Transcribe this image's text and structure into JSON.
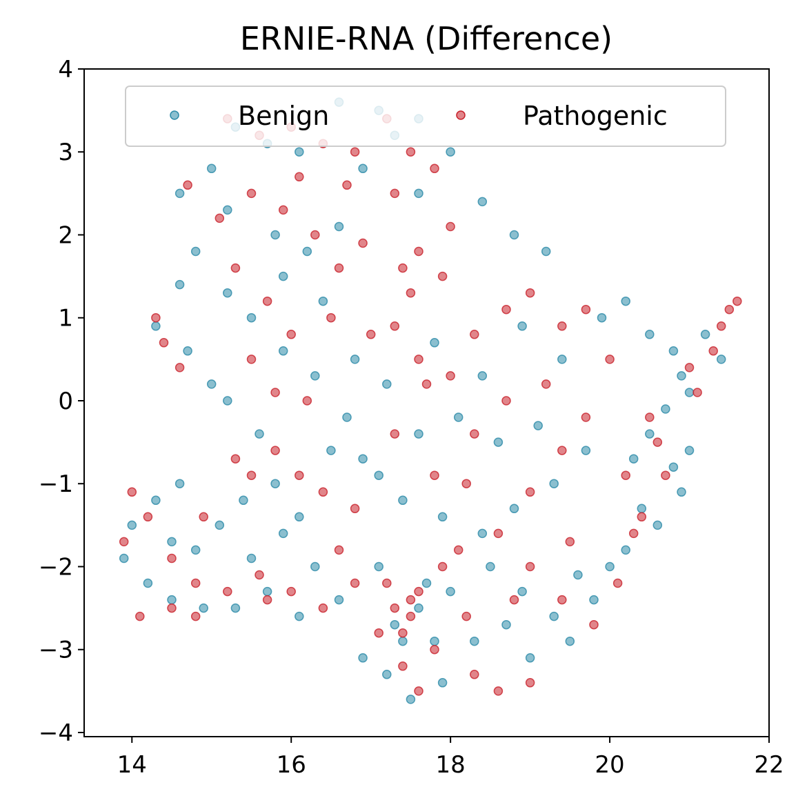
{
  "chart_data": {
    "type": "scatter",
    "title": "ERNIE-RNA (Difference)",
    "xlabel": "",
    "ylabel": "",
    "xlim": [
      13.4,
      22
    ],
    "ylim": [
      -4.05,
      4
    ],
    "x_ticks": [
      14,
      16,
      18,
      20,
      22
    ],
    "y_ticks": [
      4,
      3,
      2,
      1,
      0,
      -1,
      -2,
      -3,
      -4
    ],
    "x_tick_labels": [
      "14",
      "16",
      "18",
      "20",
      "22"
    ],
    "y_tick_labels": [
      "4",
      "3",
      "2",
      "1",
      "0",
      "−1",
      "−2",
      "−3",
      "−4"
    ],
    "grid": false,
    "legend": {
      "placement": "upper center",
      "columns": 2
    },
    "colors": {
      "Benign": "#2b8aa8",
      "Pathogenic": "#c8202a"
    },
    "series": [
      {
        "name": "Benign",
        "color": "#2b8aa8",
        "points": [
          [
            15.3,
            3.3
          ],
          [
            15.7,
            3.1
          ],
          [
            16.1,
            3.0
          ],
          [
            16.6,
            3.6
          ],
          [
            17.1,
            3.5
          ],
          [
            17.6,
            3.4
          ],
          [
            17.3,
            3.2
          ],
          [
            18.0,
            3.0
          ],
          [
            16.9,
            2.8
          ],
          [
            17.6,
            2.5
          ],
          [
            15.0,
            2.8
          ],
          [
            14.6,
            2.5
          ],
          [
            14.8,
            1.8
          ],
          [
            15.2,
            2.3
          ],
          [
            15.8,
            2.0
          ],
          [
            16.2,
            1.8
          ],
          [
            16.6,
            2.1
          ],
          [
            18.4,
            2.4
          ],
          [
            18.8,
            2.0
          ],
          [
            19.2,
            1.8
          ],
          [
            15.9,
            1.5
          ],
          [
            15.2,
            1.3
          ],
          [
            14.6,
            1.4
          ],
          [
            14.3,
            0.9
          ],
          [
            14.7,
            0.6
          ],
          [
            15.0,
            0.2
          ],
          [
            15.5,
            1.0
          ],
          [
            16.4,
            1.2
          ],
          [
            16.8,
            0.5
          ],
          [
            17.2,
            0.2
          ],
          [
            17.8,
            0.7
          ],
          [
            18.4,
            0.3
          ],
          [
            18.9,
            0.9
          ],
          [
            19.4,
            0.5
          ],
          [
            19.9,
            1.0
          ],
          [
            20.2,
            1.2
          ],
          [
            20.5,
            0.8
          ],
          [
            20.8,
            0.6
          ],
          [
            20.9,
            0.3
          ],
          [
            21.0,
            0.1
          ],
          [
            21.2,
            0.8
          ],
          [
            21.4,
            0.5
          ],
          [
            20.7,
            -0.1
          ],
          [
            20.5,
            -0.4
          ],
          [
            20.3,
            -0.7
          ],
          [
            20.8,
            -0.8
          ],
          [
            21.0,
            -0.6
          ],
          [
            20.9,
            -1.1
          ],
          [
            20.6,
            -1.5
          ],
          [
            20.2,
            -1.8
          ],
          [
            19.8,
            -2.4
          ],
          [
            19.5,
            -2.9
          ],
          [
            19.0,
            -3.1
          ],
          [
            18.7,
            -2.7
          ],
          [
            18.3,
            -2.9
          ],
          [
            17.9,
            -3.4
          ],
          [
            17.5,
            -3.6
          ],
          [
            17.2,
            -3.3
          ],
          [
            16.9,
            -3.1
          ],
          [
            17.4,
            -2.9
          ],
          [
            17.7,
            -2.2
          ],
          [
            17.1,
            -2.0
          ],
          [
            16.6,
            -2.4
          ],
          [
            16.1,
            -2.6
          ],
          [
            15.7,
            -2.3
          ],
          [
            15.3,
            -2.5
          ],
          [
            14.9,
            -2.5
          ],
          [
            14.5,
            -2.4
          ],
          [
            14.2,
            -2.2
          ],
          [
            13.9,
            -1.9
          ],
          [
            14.0,
            -1.5
          ],
          [
            14.3,
            -1.2
          ],
          [
            14.6,
            -1.0
          ],
          [
            15.1,
            -1.5
          ],
          [
            15.4,
            -1.2
          ],
          [
            15.8,
            -1.0
          ],
          [
            16.1,
            -1.4
          ],
          [
            16.5,
            -0.6
          ],
          [
            16.9,
            -0.7
          ],
          [
            17.4,
            -1.2
          ],
          [
            17.9,
            -1.4
          ],
          [
            18.4,
            -1.6
          ],
          [
            18.8,
            -1.3
          ],
          [
            19.3,
            -1.0
          ],
          [
            19.7,
            -0.6
          ],
          [
            19.1,
            -0.3
          ],
          [
            18.6,
            -0.5
          ],
          [
            18.1,
            -0.2
          ],
          [
            17.6,
            -0.4
          ],
          [
            17.1,
            -0.9
          ],
          [
            15.6,
            -0.4
          ],
          [
            15.2,
            0.0
          ],
          [
            15.9,
            0.6
          ],
          [
            16.3,
            0.3
          ],
          [
            16.7,
            -0.2
          ],
          [
            14.5,
            -1.7
          ],
          [
            14.8,
            -1.8
          ],
          [
            15.5,
            -1.9
          ],
          [
            15.9,
            -1.6
          ],
          [
            16.3,
            -2.0
          ],
          [
            17.3,
            -2.7
          ],
          [
            17.6,
            -2.5
          ],
          [
            17.8,
            -2.9
          ],
          [
            18.0,
            -2.3
          ],
          [
            18.5,
            -2.0
          ],
          [
            18.9,
            -2.3
          ],
          [
            19.3,
            -2.6
          ],
          [
            19.6,
            -2.1
          ],
          [
            20.0,
            -2.0
          ],
          [
            20.4,
            -1.3
          ]
        ]
      },
      {
        "name": "Pathogenic",
        "color": "#c8202a",
        "points": [
          [
            15.2,
            3.4
          ],
          [
            15.6,
            3.2
          ],
          [
            16.0,
            3.3
          ],
          [
            16.4,
            3.1
          ],
          [
            16.8,
            3.0
          ],
          [
            17.2,
            3.4
          ],
          [
            17.5,
            3.0
          ],
          [
            17.8,
            2.8
          ],
          [
            16.7,
            2.6
          ],
          [
            17.3,
            2.5
          ],
          [
            14.7,
            2.6
          ],
          [
            15.1,
            2.2
          ],
          [
            15.5,
            2.5
          ],
          [
            15.9,
            2.3
          ],
          [
            16.3,
            2.0
          ],
          [
            16.9,
            1.9
          ],
          [
            17.4,
            1.6
          ],
          [
            17.5,
            1.3
          ],
          [
            17.6,
            1.8
          ],
          [
            18.0,
            2.1
          ],
          [
            14.3,
            1.0
          ],
          [
            14.4,
            0.7
          ],
          [
            14.6,
            0.4
          ],
          [
            15.3,
            1.6
          ],
          [
            15.7,
            1.2
          ],
          [
            16.0,
            0.8
          ],
          [
            16.5,
            1.0
          ],
          [
            17.0,
            0.8
          ],
          [
            17.3,
            0.9
          ],
          [
            17.6,
            0.5
          ],
          [
            18.0,
            0.3
          ],
          [
            18.3,
            0.8
          ],
          [
            18.7,
            1.1
          ],
          [
            19.0,
            1.3
          ],
          [
            19.4,
            0.9
          ],
          [
            19.7,
            1.1
          ],
          [
            20.0,
            0.5
          ],
          [
            21.0,
            0.4
          ],
          [
            21.3,
            0.6
          ],
          [
            21.5,
            1.1
          ],
          [
            21.6,
            1.2
          ],
          [
            21.4,
            0.9
          ],
          [
            20.5,
            -0.2
          ],
          [
            20.2,
            -0.9
          ],
          [
            20.4,
            -1.4
          ],
          [
            20.7,
            -0.9
          ],
          [
            20.1,
            -2.2
          ],
          [
            19.8,
            -2.7
          ],
          [
            19.4,
            -2.4
          ],
          [
            19.0,
            -2.0
          ],
          [
            19.0,
            -3.4
          ],
          [
            18.6,
            -3.5
          ],
          [
            18.3,
            -3.3
          ],
          [
            17.8,
            -3.0
          ],
          [
            17.4,
            -3.2
          ],
          [
            17.1,
            -2.8
          ],
          [
            17.3,
            -2.5
          ],
          [
            17.5,
            -2.6
          ],
          [
            17.6,
            -2.3
          ],
          [
            17.2,
            -2.2
          ],
          [
            16.8,
            -2.2
          ],
          [
            16.4,
            -2.5
          ],
          [
            16.0,
            -2.3
          ],
          [
            15.6,
            -2.1
          ],
          [
            15.2,
            -2.3
          ],
          [
            14.8,
            -2.2
          ],
          [
            14.5,
            -2.5
          ],
          [
            14.1,
            -2.6
          ],
          [
            13.9,
            -1.7
          ],
          [
            14.0,
            -1.1
          ],
          [
            14.2,
            -1.4
          ],
          [
            14.5,
            -1.9
          ],
          [
            14.9,
            -1.4
          ],
          [
            15.3,
            -0.7
          ],
          [
            15.5,
            -0.9
          ],
          [
            15.8,
            -0.6
          ],
          [
            16.1,
            -0.9
          ],
          [
            16.4,
            -1.1
          ],
          [
            16.8,
            -1.3
          ],
          [
            17.3,
            -0.4
          ],
          [
            17.8,
            -0.9
          ],
          [
            18.2,
            -1.0
          ],
          [
            18.6,
            -1.6
          ],
          [
            19.0,
            -1.1
          ],
          [
            19.4,
            -0.6
          ],
          [
            19.7,
            -0.2
          ],
          [
            19.2,
            0.2
          ],
          [
            18.7,
            0.0
          ],
          [
            18.3,
            -0.4
          ],
          [
            17.7,
            0.2
          ],
          [
            15.5,
            0.5
          ],
          [
            15.8,
            0.1
          ],
          [
            16.2,
            0.0
          ],
          [
            14.8,
            -2.6
          ],
          [
            15.7,
            -2.4
          ],
          [
            16.6,
            -1.8
          ],
          [
            17.9,
            -2.0
          ],
          [
            18.2,
            -2.6
          ],
          [
            18.8,
            -2.4
          ],
          [
            19.5,
            -1.7
          ],
          [
            17.5,
            -2.4
          ],
          [
            17.4,
            -2.8
          ],
          [
            17.6,
            -3.5
          ],
          [
            18.1,
            -1.8
          ],
          [
            20.3,
            -1.6
          ],
          [
            20.6,
            -0.5
          ],
          [
            21.1,
            0.1
          ],
          [
            16.1,
            2.7
          ],
          [
            16.6,
            1.6
          ],
          [
            17.9,
            1.5
          ]
        ]
      }
    ]
  }
}
